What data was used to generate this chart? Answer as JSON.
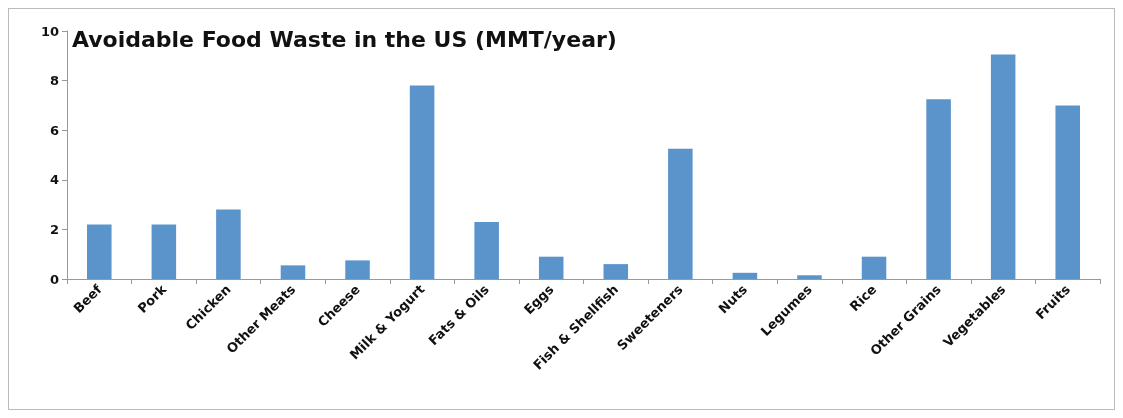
{
  "chart_data": {
    "type": "bar",
    "title": "Avoidable Food Waste in the US (MMT/year)",
    "categories": [
      "Beef",
      "Pork",
      "Chicken",
      "Other Meats",
      "Cheese",
      "Milk & Yogurt",
      "Fats & Oils",
      "Eggs",
      "Fish & Shellfish",
      "Sweeteners",
      "Nuts",
      "Legumes",
      "Rice",
      "Other Grains",
      "Vegetables",
      "Fruits"
    ],
    "values": [
      2.2,
      2.2,
      2.8,
      0.55,
      0.75,
      7.8,
      2.3,
      0.9,
      0.6,
      5.25,
      0.25,
      0.15,
      0.9,
      7.25,
      9.05,
      7.0
    ],
    "color": "#5b93cb",
    "ylim": [
      0,
      10
    ],
    "yticks": [
      0,
      2,
      4,
      6,
      8,
      10
    ]
  }
}
